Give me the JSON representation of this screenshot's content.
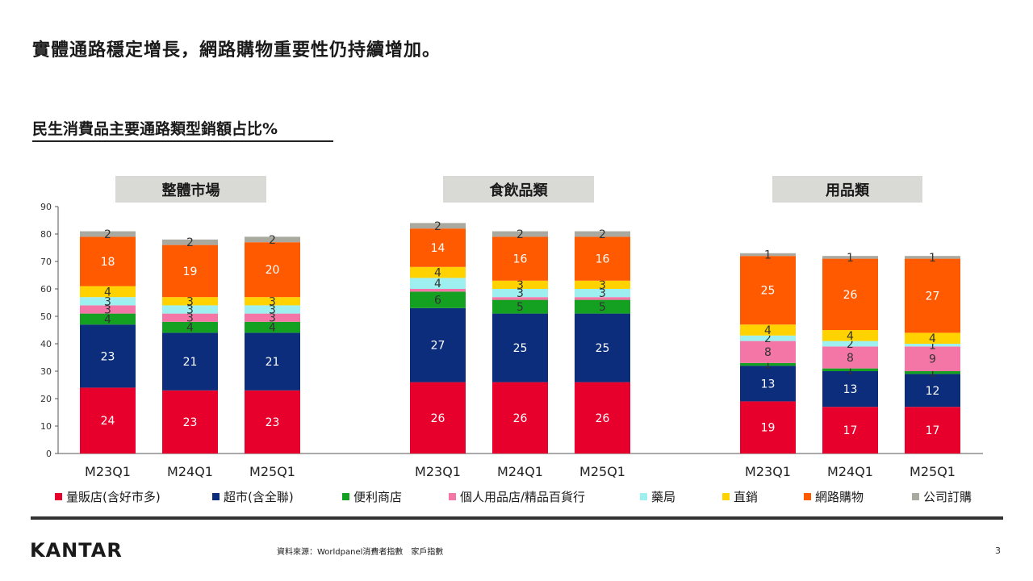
{
  "headline": "實體通路穩定增長，網路購物重要性仍持續增加。",
  "chart_subtitle": "民生消費品主要通路類型銷額占比%",
  "source_note": "資料來源：Worldpanel消費者指數　家戶指數",
  "page_number": "3",
  "logo_text": "KANTAR",
  "chart_data": {
    "type": "bar",
    "stacked": true,
    "ylim": [
      0,
      90
    ],
    "yticks": [
      0,
      10,
      20,
      30,
      40,
      50,
      60,
      70,
      80,
      90
    ],
    "grid": false,
    "legend_position": "bottom",
    "categories": [
      "M23Q1",
      "M24Q1",
      "M25Q1"
    ],
    "segment_names": [
      "量販店(含好市多)",
      "超市(含全聯)",
      "便利商店",
      "個人用品店/精品百貨行",
      "藥局",
      "直銷",
      "網路購物",
      "公司訂購"
    ],
    "segment_colors": [
      "#e8002d",
      "#0b2d7c",
      "#14a020",
      "#f476a6",
      "#9df0ef",
      "#ffd200",
      "#ff5a00",
      "#a9a9a0"
    ],
    "segment_label_colors": [
      "#ffffff",
      "#ffffff",
      "#333333",
      "#333333",
      "#333333",
      "#333333",
      "#ffffff",
      "#333333"
    ],
    "groups": [
      {
        "label": "整體市場",
        "bars": [
          {
            "category": "M23Q1",
            "values": [
              24,
              23,
              4,
              3,
              3,
              4,
              18,
              2
            ]
          },
          {
            "category": "M24Q1",
            "values": [
              23,
              21,
              4,
              3,
              3,
              3,
              19,
              2
            ]
          },
          {
            "category": "M25Q1",
            "values": [
              23,
              21,
              4,
              3,
              3,
              3,
              20,
              2
            ]
          }
        ]
      },
      {
        "label": "食飲品類",
        "bars": [
          {
            "category": "M23Q1",
            "values": [
              26,
              27,
              6,
              1,
              4,
              4,
              14,
              2
            ]
          },
          {
            "category": "M24Q1",
            "values": [
              26,
              25,
              5,
              1,
              3,
              3,
              16,
              2
            ]
          },
          {
            "category": "M25Q1",
            "values": [
              26,
              25,
              5,
              1,
              3,
              3,
              16,
              2
            ]
          }
        ]
      },
      {
        "label": "用品類",
        "bars": [
          {
            "category": "M23Q1",
            "values": [
              19,
              13,
              1,
              8,
              2,
              4,
              25,
              1
            ]
          },
          {
            "category": "M24Q1",
            "values": [
              17,
              13,
              1,
              8,
              2,
              4,
              26,
              1
            ]
          },
          {
            "category": "M25Q1",
            "values": [
              17,
              12,
              1,
              9,
              1,
              4,
              27,
              1
            ]
          }
        ]
      }
    ]
  }
}
